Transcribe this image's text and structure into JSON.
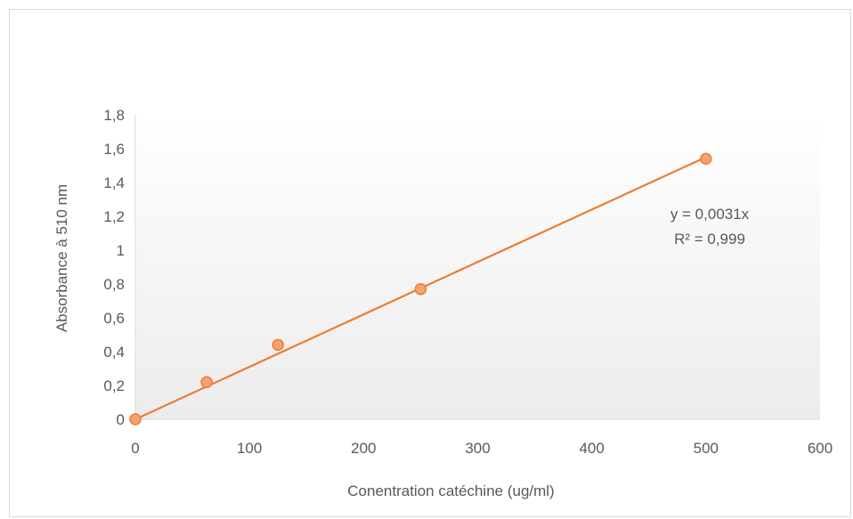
{
  "chart_data": {
    "type": "scatter",
    "title": "",
    "xlabel": "Conentration catéchine  (ug/ml)",
    "ylabel": "Absorbance à 510 nm",
    "xlim": [
      0,
      600
    ],
    "ylim": [
      0,
      1.8
    ],
    "x_ticks": [
      0,
      100,
      200,
      300,
      400,
      500,
      600
    ],
    "y_ticks": [
      0,
      0.2,
      0.4,
      0.6,
      0.8,
      1,
      1.2,
      1.4,
      1.6,
      1.8
    ],
    "x_tick_labels": [
      "0",
      "100",
      "200",
      "300",
      "400",
      "500",
      "600"
    ],
    "y_tick_labels": [
      "0",
      "0,2",
      "0,4",
      "0,6",
      "0,8",
      "1",
      "1,2",
      "1,4",
      "1,6",
      "1,8"
    ],
    "grid": false,
    "legend": "none",
    "series": [
      {
        "x": [
          0,
          62.5,
          125,
          250,
          500
        ],
        "y": [
          0,
          0.22,
          0.44,
          0.77,
          1.54
        ],
        "color": "#ed7d31",
        "trendline": {
          "type": "linear",
          "slope": 0.0031,
          "intercept": 0,
          "x_range": [
            0,
            500
          ]
        }
      }
    ],
    "annotations": {
      "equation": "y = 0,0031x",
      "r_squared": "R² = 0,999"
    }
  }
}
